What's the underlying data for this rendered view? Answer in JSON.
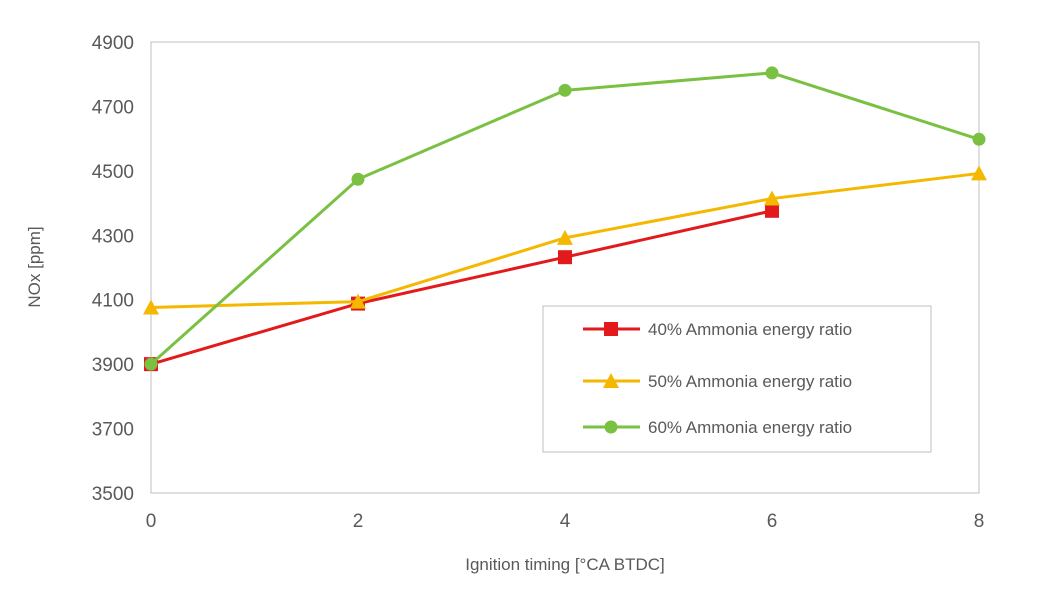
{
  "chart_data": {
    "type": "line",
    "title": "",
    "xlabel": "Ignition timing [°CA BTDC]",
    "ylabel": "NOx [ppm]",
    "xlim": [
      0,
      8
    ],
    "ylim": [
      3500,
      4900
    ],
    "xticks": [
      0,
      2,
      4,
      6,
      8
    ],
    "yticks": [
      3500,
      3700,
      3900,
      4100,
      4300,
      4500,
      4700,
      4900
    ],
    "grid": false,
    "legend_position": "right",
    "series": [
      {
        "name": "40% Ammonia energy ratio",
        "color": "#e31a1c",
        "marker": "square",
        "x": [
          0,
          2,
          4,
          6
        ],
        "y": [
          3900,
          4088,
          4232,
          4376
        ]
      },
      {
        "name": "50% Ammonia energy ratio",
        "color": "#f5b800",
        "marker": "triangle",
        "x": [
          0,
          2,
          4,
          6,
          8
        ],
        "y": [
          4076,
          4094,
          4292,
          4414,
          4492
        ]
      },
      {
        "name": "60% Ammonia energy ratio",
        "color": "#7ac143",
        "marker": "circle",
        "x": [
          0,
          2,
          4,
          6,
          8
        ],
        "y": [
          3900,
          4474,
          4750,
          4804,
          4598
        ]
      }
    ]
  }
}
